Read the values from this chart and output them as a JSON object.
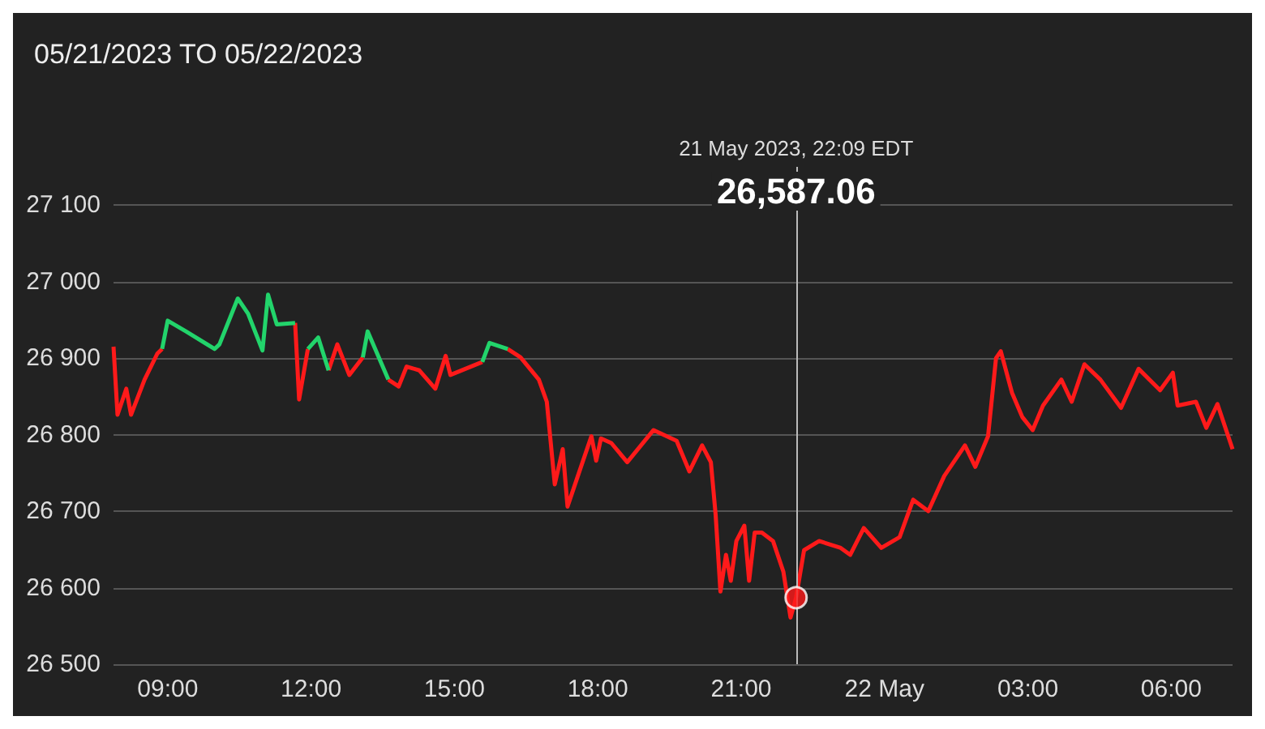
{
  "chart_data": {
    "type": "line",
    "title": "05/21/2023 TO 05/22/2023",
    "grid": "y",
    "marker": "none",
    "xlim": [
      "2023-05-21T07:52",
      "2023-05-22T07:17"
    ],
    "xticks": [
      {
        "value": "2023-05-21T09:00",
        "label": "09:00"
      },
      {
        "value": "2023-05-21T12:00",
        "label": "12:00"
      },
      {
        "value": "2023-05-21T15:00",
        "label": "15:00"
      },
      {
        "value": "2023-05-21T18:00",
        "label": "18:00"
      },
      {
        "value": "2023-05-21T21:00",
        "label": "21:00"
      },
      {
        "value": "2023-05-22T00:00",
        "label": "22 May"
      },
      {
        "value": "2023-05-22T03:00",
        "label": "03:00"
      },
      {
        "value": "2023-05-22T06:00",
        "label": "06:00"
      }
    ],
    "ylim": [
      26500,
      27150
    ],
    "yticks": [
      {
        "value": 26500,
        "label": "26 500"
      },
      {
        "value": 26600,
        "label": "26 600"
      },
      {
        "value": 26700,
        "label": "26 700"
      },
      {
        "value": 26800,
        "label": "26 800"
      },
      {
        "value": 26900,
        "label": "26 900"
      },
      {
        "value": 27000,
        "label": "27 000"
      },
      {
        "value": 27100,
        "label": "27 100"
      }
    ],
    "series": [
      {
        "color": "#ff1a1a",
        "x": [
          "2023-05-21T07:52",
          "2023-05-21T07:57",
          "2023-05-21T08:08",
          "2023-05-21T08:14",
          "2023-05-21T08:31",
          "2023-05-21T08:47",
          "2023-05-21T08:53",
          "2023-05-21T10:00",
          "2023-05-21T11:40",
          "2023-05-21T11:45",
          "2023-05-21T11:56",
          "2023-05-21T12:03",
          "2023-05-21T12:22",
          "2023-05-21T12:33",
          "2023-05-21T12:48",
          "2023-05-21T13:05",
          "2023-05-21T13:06",
          "2023-05-21T13:37",
          "2023-05-21T13:50",
          "2023-05-21T14:00",
          "2023-05-21T14:16",
          "2023-05-21T14:36",
          "2023-05-21T14:49",
          "2023-05-21T14:55",
          "2023-05-21T15:35",
          "2023-05-21T15:48",
          "2023-05-21T16:07",
          "2023-05-21T16:23",
          "2023-05-21T16:46",
          "2023-05-21T16:56",
          "2023-05-21T17:06",
          "2023-05-21T17:16",
          "2023-05-21T17:22",
          "2023-05-21T17:35",
          "2023-05-21T17:52",
          "2023-05-21T17:58",
          "2023-05-21T18:04",
          "2023-05-21T18:17",
          "2023-05-21T18:37",
          "2023-05-21T19:10",
          "2023-05-21T19:39",
          "2023-05-21T19:55",
          "2023-05-21T20:11",
          "2023-05-21T20:22",
          "2023-05-21T20:28",
          "2023-05-21T20:34",
          "2023-05-21T20:41",
          "2023-05-21T20:47",
          "2023-05-21T20:54",
          "2023-05-21T21:04",
          "2023-05-21T21:10",
          "2023-05-21T21:17",
          "2023-05-21T21:26",
          "2023-05-21T21:40",
          "2023-05-21T21:53",
          "2023-05-21T22:02",
          "2023-05-21T22:09",
          "2023-05-21T22:19",
          "2023-05-21T22:38",
          "2023-05-21T23:05",
          "2023-05-21T23:17",
          "2023-05-21T23:34",
          "2023-05-21T23:56",
          "2023-05-22T00:19",
          "2023-05-22T00:36",
          "2023-05-22T00:55",
          "2023-05-22T01:15",
          "2023-05-22T01:41",
          "2023-05-22T01:54",
          "2023-05-22T02:10",
          "2023-05-22T02:20",
          "2023-05-22T02:26",
          "2023-05-22T02:40",
          "2023-05-22T02:53",
          "2023-05-22T03:06",
          "2023-05-22T03:19",
          "2023-05-22T03:42",
          "2023-05-22T03:55",
          "2023-05-22T04:11",
          "2023-05-22T04:31",
          "2023-05-22T04:57",
          "2023-05-22T05:19",
          "2023-05-22T05:46",
          "2023-05-22T06:02",
          "2023-05-22T06:08",
          "2023-05-22T06:31",
          "2023-05-22T06:44",
          "2023-05-22T06:58",
          "2023-05-22T07:17"
        ],
        "values": [
          26915,
          26826,
          26860,
          26826,
          26872,
          26906,
          26912,
          null,
          26946,
          26846,
          26912,
          null,
          26884,
          26918,
          26878,
          26901,
          null,
          26872,
          26863,
          26889,
          26884,
          26860,
          26903,
          26878,
          26895,
          null,
          26912,
          26901,
          26872,
          26843,
          26735,
          26781,
          26706,
          26746,
          26798,
          26766,
          26795,
          26789,
          26764,
          26806,
          26792,
          26752,
          26786,
          26764,
          26695,
          26595,
          26643,
          26609,
          26661,
          26681,
          26609,
          26672,
          26672,
          26661,
          26621,
          26561,
          26587,
          26649,
          26661,
          26652,
          26643,
          26678,
          26652,
          26666,
          26715,
          26700,
          26746,
          26786,
          26758,
          26798,
          26900,
          26909,
          26855,
          26823,
          26806,
          26838,
          26872,
          26843,
          26892,
          26872,
          26835,
          26886,
          26858,
          26881,
          26838,
          26843,
          26809,
          26840,
          26781
        ]
      },
      {
        "color": "#22d46b",
        "x": [
          "2023-05-21T08:53",
          "2023-05-21T09:00",
          "2023-05-21T09:23",
          "2023-05-21T09:59",
          "2023-05-21T10:05",
          "2023-05-21T10:28",
          "2023-05-21T10:41",
          "2023-05-21T10:59",
          "2023-05-21T11:06",
          "2023-05-21T11:17",
          "2023-05-21T11:40",
          "2023-05-21T11:48",
          "2023-05-21T11:56",
          "2023-05-21T12:09",
          "2023-05-21T12:22",
          "2023-05-21T12:30",
          "2023-05-21T13:05",
          "2023-05-21T13:11",
          "2023-05-21T13:37",
          "2023-05-21T14:30",
          "2023-05-21T15:35",
          "2023-05-21T15:44",
          "2023-05-21T16:07"
        ],
        "values": [
          26912,
          26949,
          26935,
          26912,
          26918,
          26978,
          26958,
          26910,
          26983,
          26944,
          26946,
          null,
          26912,
          26927,
          26884,
          null,
          26901,
          26935,
          26872,
          null,
          26895,
          26920,
          26912
        ]
      },
      {
        "type": "scatter",
        "marker": "circle",
        "color": "#ff1a1a",
        "x": [
          "2023-05-21T22:09"
        ],
        "values": [
          26587
        ]
      }
    ],
    "ref_lines": [
      {
        "axis": "x",
        "value": "2023-05-21T22:09",
        "label": "21 May 2023, 22:09 EDT",
        "color": "#bbbbbb"
      }
    ],
    "annotations": [
      "26,587.06"
    ]
  }
}
